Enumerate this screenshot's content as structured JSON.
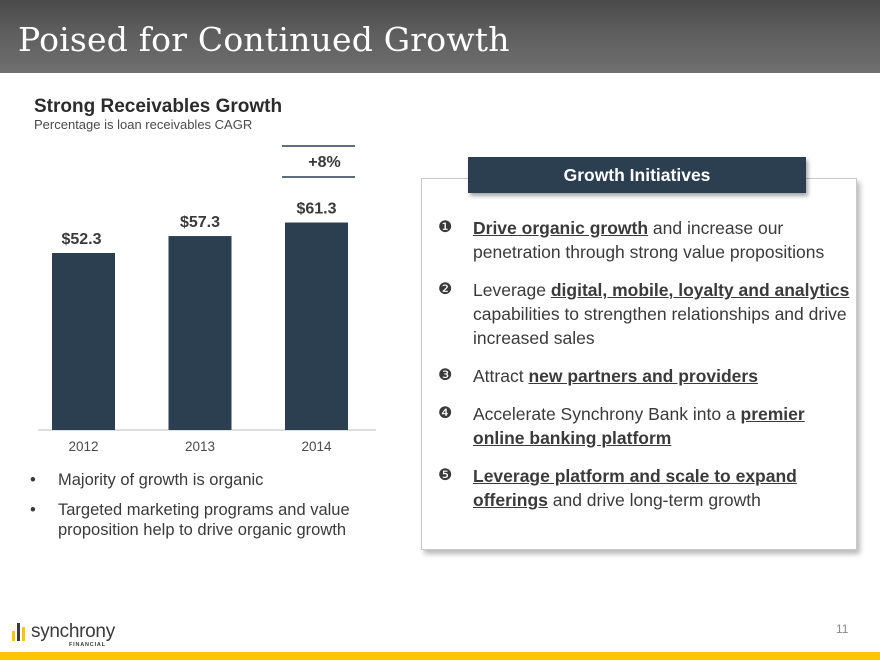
{
  "slide": {
    "title": "Poised for Continued Growth",
    "page_number": "11"
  },
  "chart_data": {
    "type": "bar",
    "title": "Strong Receivables Growth",
    "subtitle": "Percentage is loan receivables CAGR",
    "categories": [
      "2012",
      "2013",
      "2014"
    ],
    "values": [
      52.3,
      57.3,
      61.3
    ],
    "data_labels": [
      "$52.3",
      "$57.3",
      "$61.3"
    ],
    "annotation": "+8%",
    "bar_color": "#2b3f50",
    "ylim": [
      0,
      65
    ],
    "xlabel": "",
    "ylabel": ""
  },
  "bullets": [
    "Majority of growth is organic",
    "Targeted marketing programs and value proposition help to drive organic growth"
  ],
  "bullet_glyph": "•",
  "initiatives": {
    "header": "Growth Initiatives",
    "items": [
      {
        "num": "❶",
        "parts": [
          {
            "t": "Drive organic growth",
            "b": true
          },
          {
            "t": " and increase our penetration through strong value propositions",
            "b": false
          }
        ]
      },
      {
        "num": "❷",
        "parts": [
          {
            "t": "Leverage ",
            "b": false
          },
          {
            "t": "digital, mobile, loyalty and analytics",
            "b": true
          },
          {
            "t": " capabilities to strengthen relationships and drive increased sales",
            "b": false
          }
        ]
      },
      {
        "num": "❸",
        "parts": [
          {
            "t": "Attract ",
            "b": false
          },
          {
            "t": "new partners and providers",
            "b": true
          }
        ]
      },
      {
        "num": "❹",
        "parts": [
          {
            "t": "Accelerate Synchrony Bank into a ",
            "b": false
          },
          {
            "t": "premier online banking platform",
            "b": true
          }
        ]
      },
      {
        "num": "❺",
        "parts": [
          {
            "t": "Leverage platform and scale to expand offerings",
            "b": true
          },
          {
            "t": " and drive long-term growth",
            "b": false
          }
        ]
      }
    ]
  },
  "logo": {
    "word": "synchrony",
    "sub": "FINANCIAL",
    "colors": [
      "#fbc600",
      "#3a3a3a",
      "#fbc600"
    ]
  },
  "colors": {
    "accent": "#fbc600",
    "navy": "#2b3f50",
    "title_bar": "#5a5a5a"
  }
}
